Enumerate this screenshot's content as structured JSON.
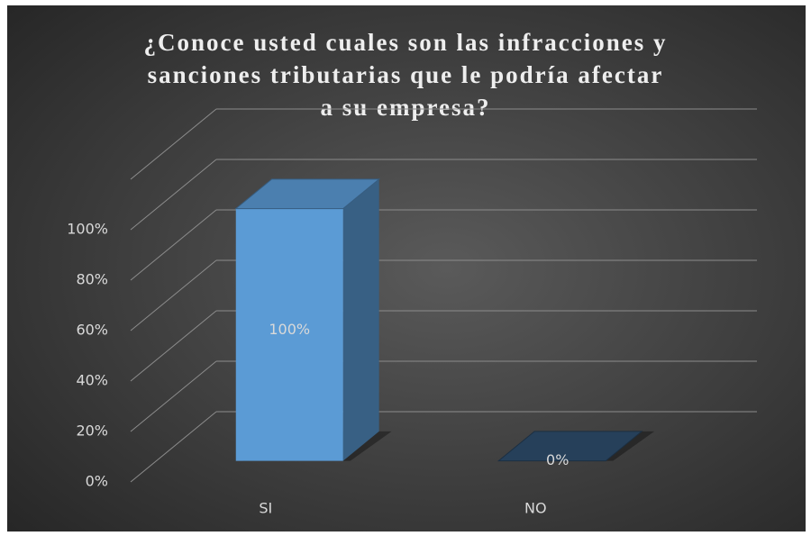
{
  "chart_data": {
    "type": "bar3d",
    "title": "¿Conoce usted cuales son las infracciones y sanciones tributarias que le podría afectar a su empresa?",
    "categories": [
      "SI",
      "NO"
    ],
    "values": [
      100,
      0
    ],
    "value_labels": [
      "100%",
      "0%"
    ],
    "colors": [
      "#5b9bd5",
      "#2e4e6e"
    ],
    "ylim": [
      0,
      120
    ],
    "yticks": [
      {
        "value": 0,
        "label": "0%"
      },
      {
        "value": 20,
        "label": "20%"
      },
      {
        "value": 40,
        "label": "40%"
      },
      {
        "value": 60,
        "label": "60%"
      },
      {
        "value": 80,
        "label": "80%"
      },
      {
        "value": 100,
        "label": "100%"
      }
    ],
    "grid": true
  }
}
